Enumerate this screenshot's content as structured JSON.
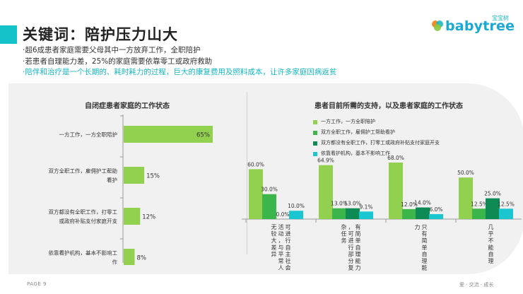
{
  "header": {
    "title": "关键词：陪护压力山大",
    "bullets": [
      "·超6成患者家庭需要父母其中一方放弃工作，全职陪护",
      "·若患者自理能力差，25%的家庭需要依靠零工或政府救助",
      "·陪伴和治疗是一个长期的、耗时耗力的过程，巨大的康复费用及照料成本，让许多家庭因病返贫"
    ]
  },
  "logo": {
    "cn": "宝宝树",
    "text": "babytree"
  },
  "colors": {
    "light_green": "#92d050",
    "green": "#3cb54a",
    "dark_green": "#0e8a55",
    "cyan": "#1ac6cf",
    "accent": "#14c3c9"
  },
  "chart_data": [
    {
      "type": "bar",
      "orientation": "horizontal",
      "title": "自闭症患者家庭的工作状态",
      "categories": [
        "一方工作，一方全职陪护",
        "双方全职工作，雇佣护工帮助看护",
        "双方都没有全职工作，打零工或政府补贴支付家庭开支",
        "依靠看护机构，基本不影响工作"
      ],
      "values": [
        65,
        15,
        12,
        8
      ],
      "value_labels": [
        "65%",
        "15%",
        "12%",
        "8%"
      ],
      "xlim": [
        0,
        65
      ]
    },
    {
      "type": "bar",
      "title": "患者目前所需的支持，以及患者家庭的工作状态",
      "categories": [
        "可进行自主社会活动，与平常人无较大差异",
        "有简单自理能力，可进行部分复杂任务",
        "只有简单自理能力",
        "几乎不能自理"
      ],
      "series": [
        {
          "name": "一方工作，一方全职陪护",
          "values": [
            60.0,
            64.9,
            68.0,
            50.0
          ],
          "labels": [
            "60.0%",
            "64.9%",
            "68.0%",
            "50.0%"
          ]
        },
        {
          "name": "双方全职工作，雇佣护工帮助看护",
          "values": [
            30.0,
            13.0,
            12.0,
            12.5
          ],
          "labels": [
            "30.0%",
            "13.0%",
            "12.0%",
            "12.5%"
          ]
        },
        {
          "name": "双方都没有全职工作，打零工或政府补贴支付家庭开支",
          "values": [
            0.0,
            13.0,
            14.0,
            25.0
          ],
          "labels": [
            "0.0%",
            "13.0%",
            "14.0%",
            "25.0%"
          ]
        },
        {
          "name": "依靠看护机构，基本不影响工作",
          "values": [
            10.0,
            9.1,
            6.0,
            12.5
          ],
          "labels": [
            "10.0%",
            "9.1%",
            "6.0%",
            "12.5%"
          ]
        }
      ],
      "ylim": [
        0,
        70
      ],
      "legend": "top"
    }
  ],
  "footer": {
    "page": "PAGE 9",
    "right": "爱 · 交流 · 成长"
  }
}
